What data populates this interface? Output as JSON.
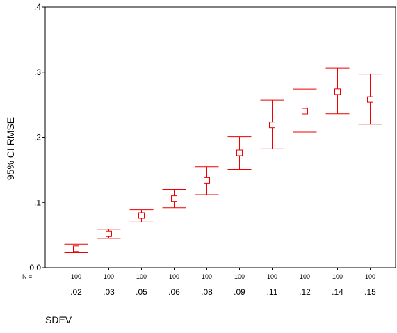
{
  "chart_data": {
    "type": "errorbar",
    "ylabel": "95% CI RMSE",
    "xlabel": "SDEV",
    "n_prefix": "N =",
    "ylim": [
      0,
      0.4
    ],
    "yticks": [
      {
        "value": 0.0,
        "label": "0.0"
      },
      {
        "value": 0.1,
        "label": ".1"
      },
      {
        "value": 0.2,
        "label": ".2"
      },
      {
        "value": 0.3,
        "label": ".3"
      },
      {
        "value": 0.4,
        "label": ".4"
      }
    ],
    "categories": [
      ".02",
      ".03",
      ".05",
      ".06",
      ".08",
      ".09",
      ".11",
      ".12",
      ".14",
      ".15"
    ],
    "n": [
      "100",
      "100",
      "100",
      "100",
      "100",
      "100",
      "100",
      "100",
      "100",
      "100"
    ],
    "means": [
      0.029,
      0.052,
      0.08,
      0.106,
      0.134,
      0.176,
      0.219,
      0.24,
      0.27,
      0.258
    ],
    "lower": [
      0.023,
      0.045,
      0.07,
      0.092,
      0.112,
      0.151,
      0.182,
      0.208,
      0.236,
      0.22
    ],
    "upper": [
      0.036,
      0.059,
      0.089,
      0.12,
      0.155,
      0.201,
      0.257,
      0.274,
      0.306,
      0.297
    ],
    "color": "#ee0000",
    "grid": false,
    "legend": "none"
  }
}
